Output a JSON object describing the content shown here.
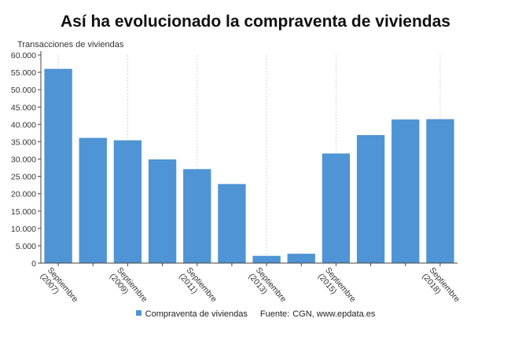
{
  "title": "Así ha evolucionado la compraventa de viviendas",
  "source_label": "Fuente:",
  "source_text": "CGN, www.epdata.es",
  "colors": {
    "bar": "#4f94d4",
    "axis": "#444444",
    "grid": "#cccccc",
    "text": "#333333"
  },
  "chart_data": {
    "type": "bar",
    "ylabel": "Transacciones de viviendas",
    "ylim": [
      0,
      60000
    ],
    "yticks": [
      "0",
      "5.000",
      "10.000",
      "15.000",
      "20.000",
      "25.000",
      "30.000",
      "35.000",
      "40.000",
      "45.000",
      "50.000",
      "55.000",
      "60.000"
    ],
    "categories": [
      "Septiembre (2007)",
      "",
      "Septiembre (2009)",
      "",
      "Septiembre (2011)",
      "",
      "Septiembre (2013)",
      "",
      "Septiembre (2015)",
      "",
      "",
      "Septiembre (2018)"
    ],
    "tick_labels": [
      [
        "Septiembre",
        "(2007)"
      ],
      null,
      [
        "Septiembre",
        "(2009)"
      ],
      null,
      [
        "Septiembre",
        "(2011)"
      ],
      null,
      [
        "Septiembre",
        "(2013)"
      ],
      null,
      [
        "Septiembre",
        "(2015)"
      ],
      null,
      null,
      [
        "Septiembre",
        "(2018)"
      ]
    ],
    "series": [
      {
        "name": "Compraventa de viviendas",
        "values": [
          56000,
          36100,
          35400,
          29900,
          27100,
          22800,
          2100,
          2700,
          31600,
          36900,
          41400,
          41500
        ]
      }
    ],
    "grid": "vertical",
    "legend_position": "bottom"
  }
}
